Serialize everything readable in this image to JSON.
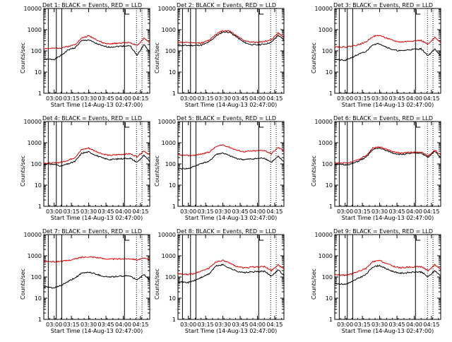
{
  "page": {
    "shared_xlabel": "Start Time (14-Aug-13 02:47:00)",
    "shared_ylabel": "Counts/sec",
    "x_ticks": [
      "03:00",
      "03:15",
      "03:30",
      "03:45",
      "04:00",
      "04:15"
    ],
    "y_ticks": [
      "1",
      "10",
      "100",
      "1000",
      "10000"
    ]
  },
  "chart_data": [
    {
      "type": "line",
      "title": "Det 1: BLACK = Events, RED = LLD",
      "xlabel": "Start Time (14-Aug-13 02:47:00)",
      "ylabel": "Counts/sec",
      "y_scale": "log",
      "ylim": [
        1,
        10000
      ],
      "xlim": [
        "02:51",
        "04:23"
      ],
      "x_ticks": [
        "03:00",
        "03:15",
        "03:30",
        "03:45",
        "04:00",
        "04:15"
      ],
      "x": [
        "02:51",
        "03:00",
        "03:06",
        "03:12",
        "03:18",
        "03:24",
        "03:30",
        "03:36",
        "03:42",
        "03:48",
        "03:54",
        "04:00",
        "04:06",
        "04:12",
        "04:18",
        "04:23"
      ],
      "series": [
        {
          "name": "Events",
          "color": "#000000",
          "values": [
            40,
            40,
            60,
            110,
            140,
            300,
            330,
            230,
            170,
            150,
            160,
            170,
            175,
            60,
            200,
            90
          ]
        },
        {
          "name": "LLD",
          "color": "#e00000",
          "values": [
            130,
            130,
            140,
            160,
            200,
            400,
            520,
            360,
            240,
            210,
            230,
            240,
            250,
            170,
            400,
            250
          ]
        }
      ]
    },
    {
      "type": "line",
      "title": "Det 2: BLACK = Events, RED = LLD",
      "xlabel": "Start Time (14-Aug-13 02:47:00)",
      "ylabel": "Counts/sec",
      "y_scale": "log",
      "ylim": [
        1,
        10000
      ],
      "xlim": [
        "02:51",
        "04:23"
      ],
      "x_ticks": [
        "03:00",
        "03:15",
        "03:30",
        "03:45",
        "04:00",
        "04:15"
      ],
      "x": [
        "02:51",
        "03:00",
        "03:06",
        "03:12",
        "03:18",
        "03:24",
        "03:30",
        "03:36",
        "03:42",
        "03:48",
        "03:54",
        "04:00",
        "04:06",
        "04:12",
        "04:18",
        "04:23"
      ],
      "series": [
        {
          "name": "Events",
          "color": "#000000",
          "values": [
            180,
            180,
            180,
            190,
            260,
            500,
            780,
            760,
            450,
            260,
            200,
            190,
            210,
            250,
            550,
            320
          ]
        },
        {
          "name": "LLD",
          "color": "#e00000",
          "values": [
            260,
            240,
            230,
            240,
            320,
            620,
            900,
            880,
            520,
            320,
            260,
            250,
            280,
            330,
            700,
            420
          ]
        }
      ]
    },
    {
      "type": "line",
      "title": "Det 3: BLACK = Events, RED = LLD",
      "xlabel": "Start Time (14-Aug-13 02:47:00)",
      "ylabel": "Counts/sec",
      "y_scale": "log",
      "ylim": [
        1,
        10000
      ],
      "xlim": [
        "02:51",
        "04:23"
      ],
      "x_ticks": [
        "03:00",
        "03:15",
        "03:30",
        "03:45",
        "04:00",
        "04:15"
      ],
      "x": [
        "02:51",
        "03:00",
        "03:06",
        "03:12",
        "03:18",
        "03:24",
        "03:30",
        "03:36",
        "03:42",
        "03:48",
        "03:54",
        "04:00",
        "04:06",
        "04:12",
        "04:18",
        "04:23"
      ],
      "series": [
        {
          "name": "Events",
          "color": "#000000",
          "values": [
            40,
            35,
            50,
            70,
            90,
            200,
            220,
            150,
            110,
            100,
            110,
            120,
            125,
            60,
            120,
            60
          ]
        },
        {
          "name": "LLD",
          "color": "#e00000",
          "values": [
            160,
            150,
            170,
            200,
            260,
            480,
            540,
            400,
            300,
            260,
            280,
            300,
            310,
            200,
            420,
            260
          ]
        }
      ]
    },
    {
      "type": "line",
      "title": "Det 4: BLACK = Events, RED = LLD",
      "xlabel": "Start Time (14-Aug-13 02:47:00)",
      "ylabel": "Counts/sec",
      "y_scale": "log",
      "ylim": [
        1,
        10000
      ],
      "xlim": [
        "02:51",
        "04:23"
      ],
      "x_ticks": [
        "03:00",
        "03:15",
        "03:30",
        "03:45",
        "04:00",
        "04:15"
      ],
      "x": [
        "02:51",
        "03:00",
        "03:06",
        "03:12",
        "03:18",
        "03:24",
        "03:30",
        "03:36",
        "03:42",
        "03:48",
        "03:54",
        "04:00",
        "04:06",
        "04:12",
        "04:18",
        "04:23"
      ],
      "series": [
        {
          "name": "Events",
          "color": "#000000",
          "values": [
            100,
            95,
            80,
            100,
            130,
            320,
            370,
            260,
            190,
            160,
            170,
            180,
            185,
            120,
            250,
            130
          ]
        },
        {
          "name": "LLD",
          "color": "#e00000",
          "values": [
            110,
            110,
            120,
            150,
            200,
            480,
            560,
            400,
            300,
            250,
            270,
            290,
            300,
            220,
            420,
            260
          ]
        }
      ]
    },
    {
      "type": "line",
      "title": "Det 5: BLACK = Events, RED = LLD",
      "xlabel": "Start Time (14-Aug-13 02:47:00)",
      "ylabel": "Counts/sec",
      "y_scale": "log",
      "ylim": [
        1,
        10000
      ],
      "xlim": [
        "02:51",
        "04:23"
      ],
      "x_ticks": [
        "03:00",
        "03:15",
        "03:30",
        "03:45",
        "04:00",
        "04:15"
      ],
      "x": [
        "02:51",
        "03:00",
        "03:06",
        "03:12",
        "03:18",
        "03:24",
        "03:30",
        "03:36",
        "03:42",
        "03:48",
        "03:54",
        "04:00",
        "04:06",
        "04:12",
        "04:18",
        "04:23"
      ],
      "series": [
        {
          "name": "Events",
          "color": "#000000",
          "values": [
            60,
            60,
            80,
            110,
            130,
            280,
            330,
            240,
            180,
            160,
            170,
            180,
            190,
            120,
            220,
            130
          ]
        },
        {
          "name": "LLD",
          "color": "#e00000",
          "values": [
            260,
            250,
            260,
            300,
            360,
            650,
            800,
            600,
            450,
            380,
            400,
            420,
            440,
            300,
            600,
            420
          ]
        }
      ]
    },
    {
      "type": "line",
      "title": "Det 6: BLACK = Events, RED = LLD",
      "xlabel": "Start Time (14-Aug-13 02:47:00)",
      "ylabel": "Counts/sec",
      "y_scale": "log",
      "ylim": [
        1,
        10000
      ],
      "xlim": [
        "02:51",
        "04:23"
      ],
      "x_ticks": [
        "03:00",
        "03:15",
        "03:30",
        "03:45",
        "04:00",
        "04:15"
      ],
      "x": [
        "02:51",
        "03:00",
        "03:06",
        "03:12",
        "03:18",
        "03:24",
        "03:30",
        "03:36",
        "03:42",
        "03:48",
        "03:54",
        "04:00",
        "04:06",
        "04:12",
        "04:18",
        "04:23"
      ],
      "series": [
        {
          "name": "Events",
          "color": "#000000",
          "values": [
            100,
            90,
            100,
            140,
            200,
            480,
            560,
            420,
            320,
            280,
            300,
            320,
            330,
            200,
            400,
            200
          ]
        },
        {
          "name": "LLD",
          "color": "#e00000",
          "values": [
            110,
            110,
            120,
            170,
            240,
            560,
            640,
            480,
            380,
            320,
            340,
            360,
            370,
            240,
            450,
            260
          ]
        }
      ]
    },
    {
      "type": "line",
      "title": "Det 7: BLACK = Events, RED = LLD",
      "xlabel": "Start Time (14-Aug-13 02:47:00)",
      "ylabel": "Counts/sec",
      "y_scale": "log",
      "ylim": [
        1,
        10000
      ],
      "xlim": [
        "02:51",
        "04:23"
      ],
      "x_ticks": [
        "03:00",
        "03:15",
        "03:30",
        "03:45",
        "04:00",
        "04:15"
      ],
      "x": [
        "02:51",
        "03:00",
        "03:06",
        "03:12",
        "03:18",
        "03:24",
        "03:30",
        "03:36",
        "03:42",
        "03:48",
        "03:54",
        "04:00",
        "04:06",
        "04:12",
        "04:18",
        "04:23"
      ],
      "series": [
        {
          "name": "Events",
          "color": "#000000",
          "values": [
            35,
            30,
            40,
            60,
            90,
            150,
            170,
            140,
            110,
            100,
            105,
            110,
            115,
            70,
            130,
            70
          ]
        },
        {
          "name": "LLD",
          "color": "#e00000",
          "values": [
            550,
            520,
            550,
            600,
            700,
            850,
            900,
            850,
            750,
            700,
            700,
            720,
            740,
            650,
            760,
            650
          ]
        }
      ]
    },
    {
      "type": "line",
      "title": "Det 8: BLACK = Events, RED = LLD",
      "xlabel": "Start Time (14-Aug-13 02:47:00)",
      "ylabel": "Counts/sec",
      "y_scale": "log",
      "ylim": [
        1,
        10000
      ],
      "xlim": [
        "02:51",
        "04:23"
      ],
      "x_ticks": [
        "03:00",
        "03:15",
        "03:30",
        "03:45",
        "04:00",
        "04:15"
      ],
      "x": [
        "02:51",
        "03:00",
        "03:06",
        "03:12",
        "03:18",
        "03:24",
        "03:30",
        "03:36",
        "03:42",
        "03:48",
        "03:54",
        "04:00",
        "04:06",
        "04:12",
        "04:18",
        "04:23"
      ],
      "series": [
        {
          "name": "Events",
          "color": "#000000",
          "values": [
            60,
            55,
            70,
            100,
            140,
            330,
            380,
            260,
            190,
            160,
            170,
            180,
            185,
            110,
            220,
            120
          ]
        },
        {
          "name": "LLD",
          "color": "#e00000",
          "values": [
            140,
            130,
            150,
            200,
            260,
            520,
            600,
            440,
            320,
            270,
            290,
            300,
            310,
            200,
            380,
            230
          ]
        }
      ]
    },
    {
      "type": "line",
      "title": "Det 9: BLACK = Events, RED = LLD",
      "xlabel": "Start Time (14-Aug-13 02:47:00)",
      "ylabel": "Counts/sec",
      "y_scale": "log",
      "ylim": [
        1,
        10000
      ],
      "xlim": [
        "02:51",
        "04:23"
      ],
      "x_ticks": [
        "03:00",
        "03:15",
        "03:30",
        "03:45",
        "04:00",
        "04:15"
      ],
      "x": [
        "02:51",
        "03:00",
        "03:06",
        "03:12",
        "03:18",
        "03:24",
        "03:30",
        "03:36",
        "03:42",
        "03:48",
        "03:54",
        "04:00",
        "04:06",
        "04:12",
        "04:18",
        "04:23"
      ],
      "series": [
        {
          "name": "Events",
          "color": "#000000",
          "values": [
            50,
            45,
            60,
            90,
            130,
            300,
            350,
            240,
            180,
            150,
            160,
            170,
            175,
            100,
            200,
            110
          ]
        },
        {
          "name": "LLD",
          "color": "#e00000",
          "values": [
            130,
            120,
            140,
            190,
            250,
            520,
            600,
            430,
            320,
            270,
            290,
            300,
            310,
            200,
            380,
            230
          ]
        }
      ]
    }
  ]
}
